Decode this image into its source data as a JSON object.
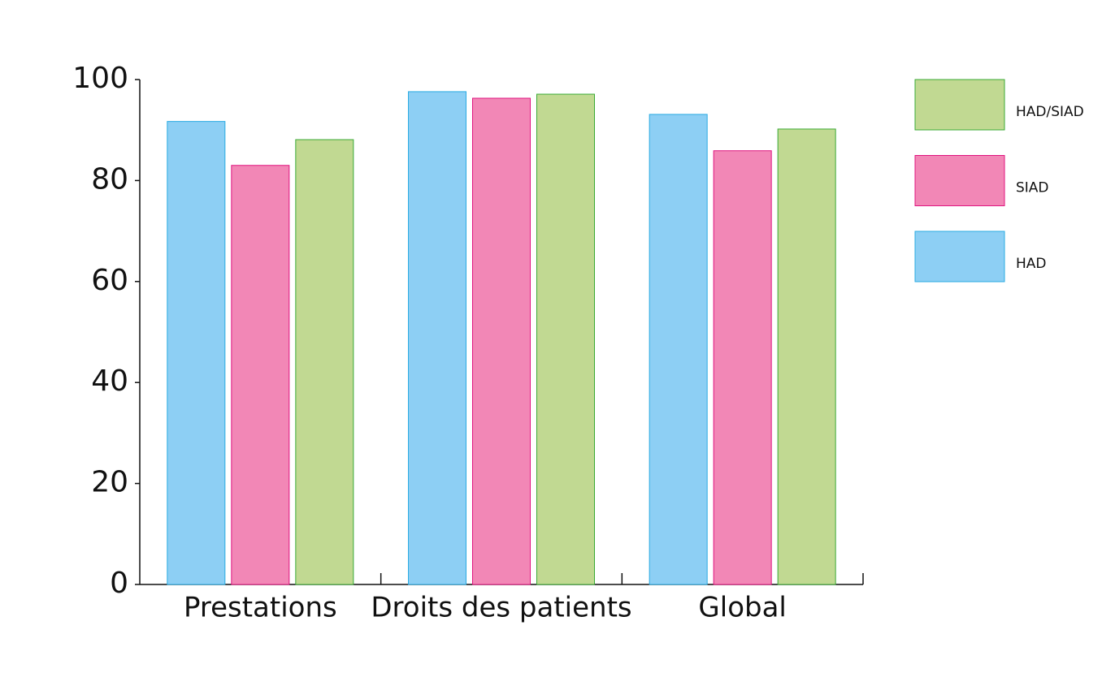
{
  "chart_data": {
    "type": "bar",
    "categories": [
      "Prestations",
      "Droits des patients",
      "Global"
    ],
    "series": [
      {
        "name": "HAD",
        "color": "#8dcff4",
        "edge_color": "#29abe2",
        "values": [
          91.7,
          97.6,
          93.1
        ]
      },
      {
        "name": "SIAD",
        "color": "#f287b6",
        "edge_color": "#e0147f",
        "values": [
          83.0,
          96.3,
          85.9
        ]
      },
      {
        "name": "HAD/SIAD",
        "color": "#c1d992",
        "edge_color": "#3aaa35",
        "values": [
          88.1,
          97.1,
          90.2
        ]
      }
    ],
    "ylim": [
      0,
      100
    ],
    "yticks": [
      0,
      20,
      40,
      60,
      80,
      100
    ],
    "grid": false,
    "legend": "right"
  }
}
